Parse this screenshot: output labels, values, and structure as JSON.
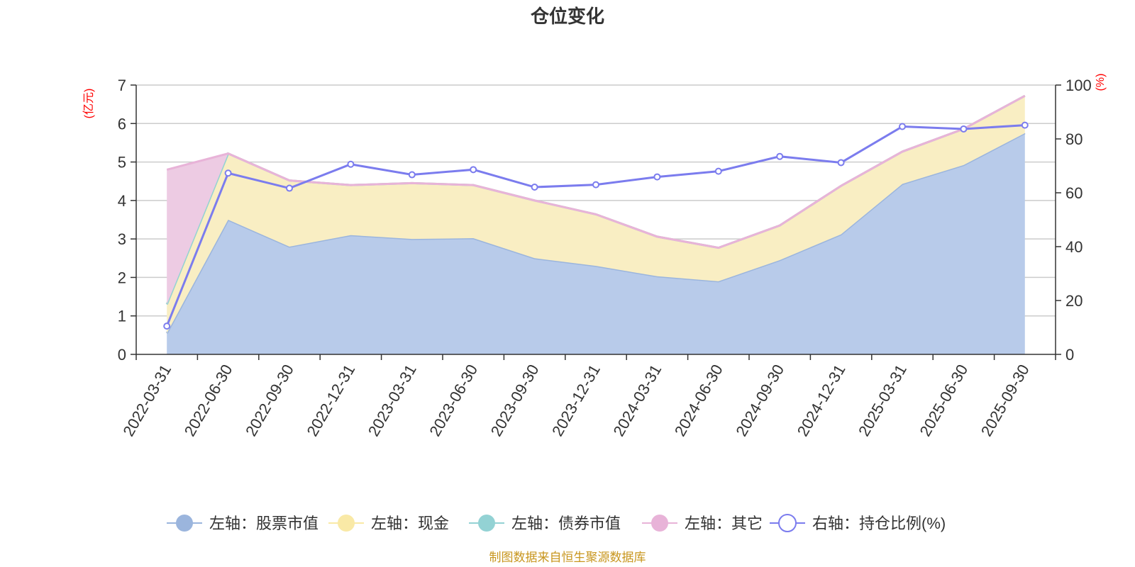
{
  "chart_data": {
    "type": "area",
    "title": "仓位变化",
    "source_note": "制图数据来自恒生聚源数据库",
    "left_axis": {
      "name": "(亿元)",
      "min": 0,
      "max": 7,
      "ticks": [
        0,
        1,
        2,
        3,
        4,
        5,
        6,
        7
      ]
    },
    "right_axis": {
      "name": "(%)",
      "min": 0,
      "max": 100,
      "ticks": [
        0,
        20,
        40,
        60,
        80,
        100
      ]
    },
    "categories": [
      "2022-03-31",
      "2022-06-30",
      "2022-09-30",
      "2022-12-31",
      "2023-03-31",
      "2023-06-30",
      "2023-09-30",
      "2023-12-31",
      "2024-03-31",
      "2024-06-30",
      "2024-09-30",
      "2024-12-31",
      "2025-03-31",
      "2025-06-30",
      "2025-09-30"
    ],
    "grid": true,
    "legend_position": "bottom",
    "series": [
      {
        "name": "左轴：股票市值",
        "axis": "left",
        "color": "#9bb5dd",
        "fill": "#b8cbea",
        "values": [
          0.55,
          3.5,
          2.8,
          3.1,
          3.0,
          3.02,
          2.5,
          2.3,
          2.03,
          1.9,
          2.45,
          3.12,
          4.43,
          4.92,
          5.75
        ]
      },
      {
        "name": "左轴：现金",
        "axis": "left",
        "color": "#f9e9a6",
        "fill": "#f9eec3",
        "values": [
          0.75,
          1.72,
          1.72,
          1.3,
          1.45,
          1.38,
          1.5,
          1.34,
          1.03,
          0.87,
          0.9,
          1.26,
          0.84,
          0.94,
          0.97
        ]
      },
      {
        "name": "左轴：债券市值",
        "axis": "left",
        "color": "#93d2d4",
        "fill": "#c4e6e6",
        "values": [
          0,
          0,
          0,
          0,
          0,
          0,
          0,
          0,
          0,
          0,
          0,
          0,
          0,
          0,
          0
        ]
      },
      {
        "name": "左轴：其它",
        "axis": "left",
        "color": "#e8b3d8",
        "fill": "#edcbe3",
        "values": [
          3.5,
          0,
          0,
          0,
          0,
          0,
          0,
          0,
          0,
          0,
          0,
          0,
          0,
          0,
          0
        ]
      },
      {
        "name": "右轴：持仓比例(%)",
        "axis": "right",
        "type": "line",
        "color": "#7b7cee",
        "values": [
          10.5,
          67.3,
          61.7,
          70.6,
          66.7,
          68.6,
          62.1,
          63.0,
          65.9,
          68.0,
          73.5,
          71.2,
          84.6,
          83.7,
          85.1
        ]
      }
    ]
  }
}
